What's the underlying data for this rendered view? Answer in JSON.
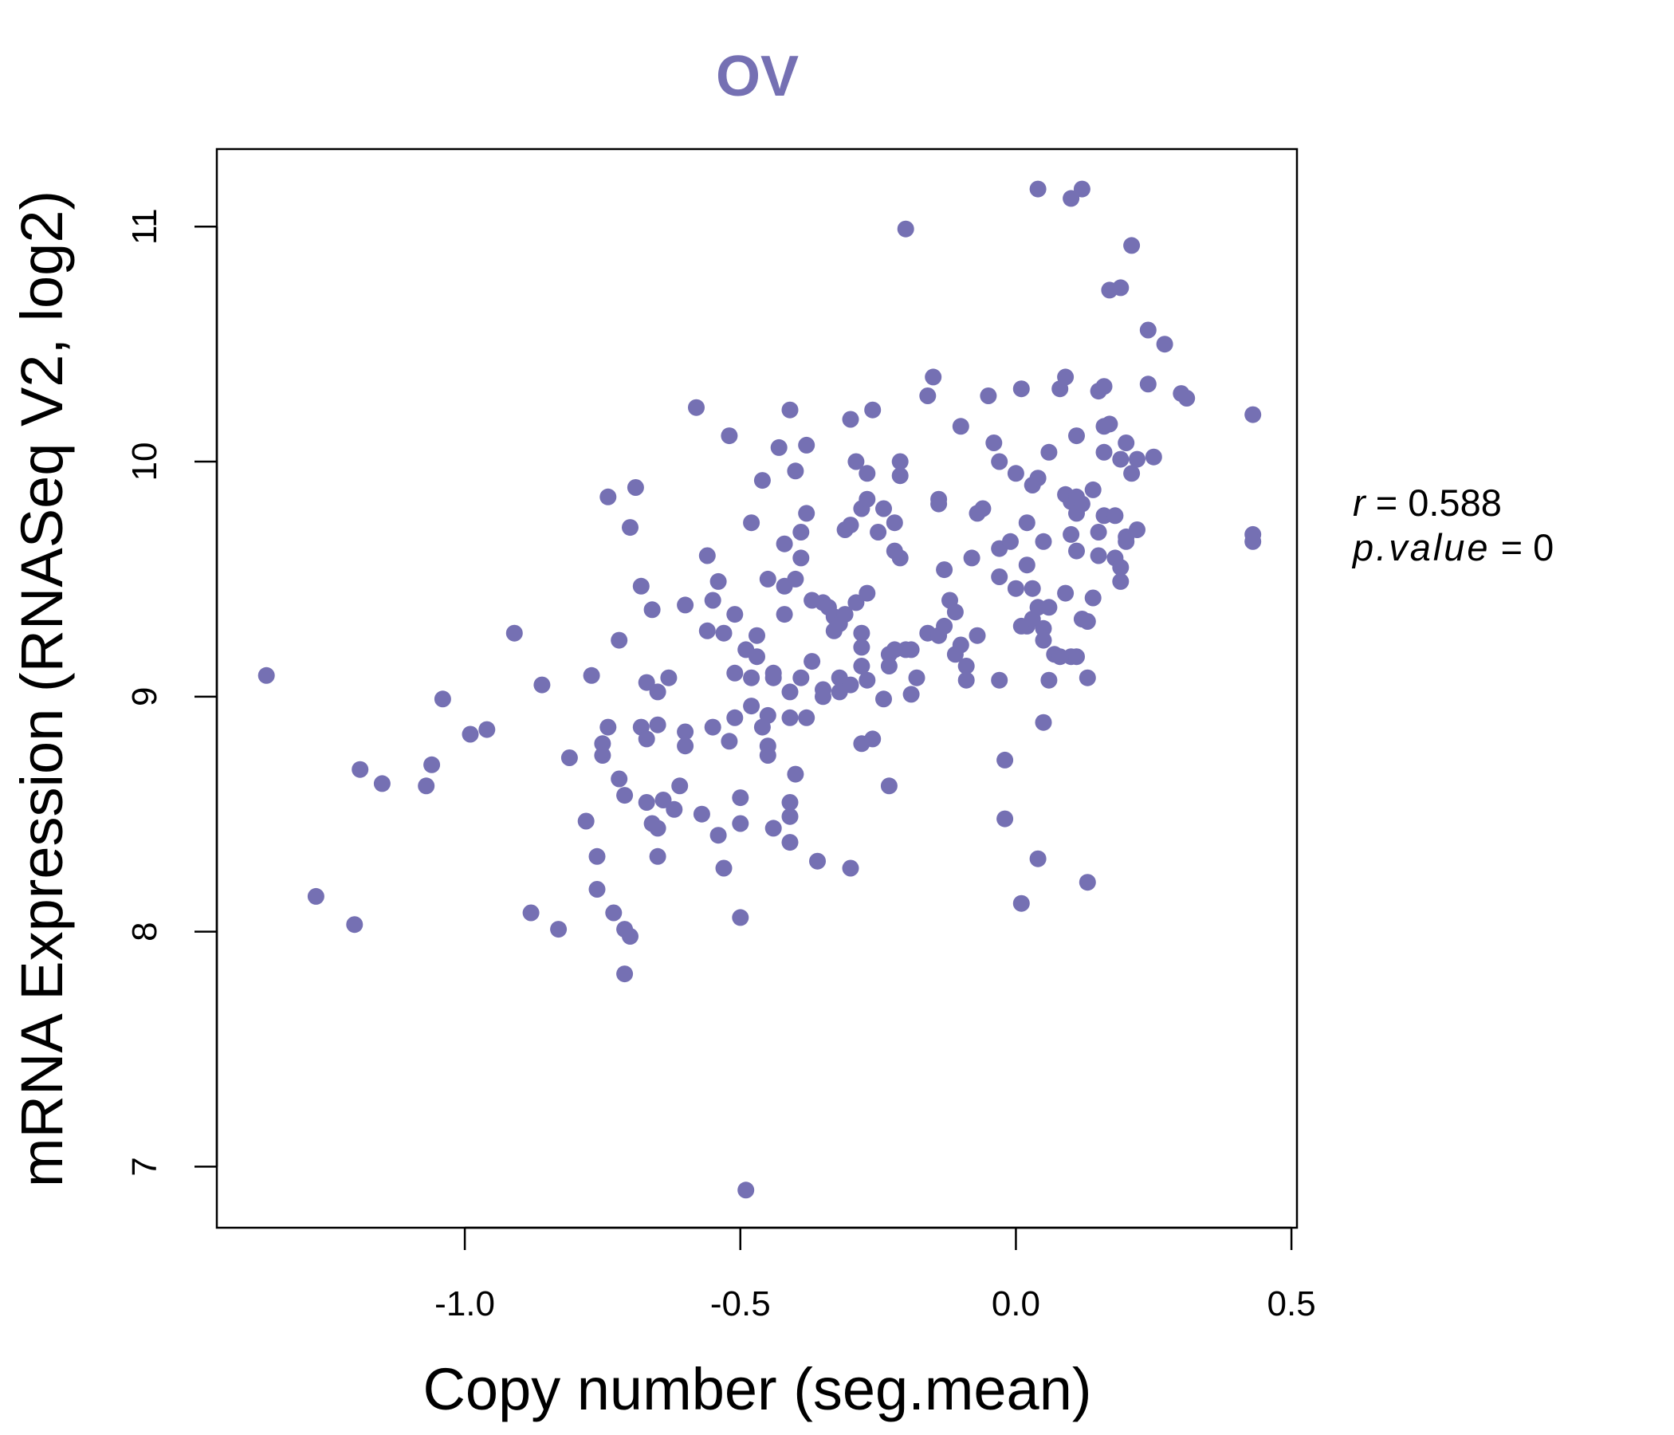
{
  "chart_data": {
    "type": "scatter",
    "title": "OV",
    "xlabel": "Copy number (seg.mean)",
    "ylabel": "mRNA Expression (RNASeq V2, log2)",
    "xlim": [
      -1.45,
      0.51
    ],
    "ylim": [
      6.74,
      11.33
    ],
    "xticks": [
      -1.0,
      -0.5,
      0.0,
      0.5
    ],
    "xtick_labels": [
      "-1.0",
      "-0.5",
      "0.0",
      "0.5"
    ],
    "yticks": [
      7,
      8,
      9,
      10,
      11
    ],
    "ytick_labels": [
      "7",
      "8",
      "9",
      "10",
      "11"
    ],
    "point_color": "#7570B3",
    "title_color": "#7570B3",
    "stats": {
      "r_label": "r",
      "r_value": "0.588",
      "p_label": "p.value",
      "p_value": "0"
    },
    "points": [
      [
        -1.36,
        9.09
      ],
      [
        -1.27,
        8.15
      ],
      [
        -1.2,
        8.03
      ],
      [
        -1.19,
        8.69
      ],
      [
        -1.15,
        8.63
      ],
      [
        -1.07,
        8.62
      ],
      [
        -1.06,
        8.71
      ],
      [
        -1.04,
        8.99
      ],
      [
        -0.99,
        8.84
      ],
      [
        -0.96,
        8.86
      ],
      [
        -0.91,
        9.27
      ],
      [
        -0.88,
        8.08
      ],
      [
        -0.86,
        9.05
      ],
      [
        -0.83,
        8.01
      ],
      [
        -0.81,
        8.74
      ],
      [
        -0.78,
        8.47
      ],
      [
        -0.77,
        9.09
      ],
      [
        -0.76,
        8.32
      ],
      [
        -0.76,
        8.18
      ],
      [
        -0.75,
        8.8
      ],
      [
        -0.75,
        8.75
      ],
      [
        -0.74,
        8.87
      ],
      [
        -0.74,
        9.85
      ],
      [
        -0.73,
        8.08
      ],
      [
        -0.72,
        8.65
      ],
      [
        -0.72,
        9.24
      ],
      [
        -0.71,
        8.58
      ],
      [
        -0.71,
        7.82
      ],
      [
        -0.71,
        8.01
      ],
      [
        -0.7,
        9.72
      ],
      [
        -0.7,
        7.98
      ],
      [
        -0.69,
        9.89
      ],
      [
        -0.68,
        8.87
      ],
      [
        -0.68,
        9.47
      ],
      [
        -0.67,
        9.06
      ],
      [
        -0.67,
        8.82
      ],
      [
        -0.67,
        8.55
      ],
      [
        -0.66,
        9.37
      ],
      [
        -0.66,
        8.46
      ],
      [
        -0.65,
        8.44
      ],
      [
        -0.65,
        8.32
      ],
      [
        -0.65,
        8.88
      ],
      [
        -0.65,
        9.02
      ],
      [
        -0.64,
        8.56
      ],
      [
        -0.63,
        9.08
      ],
      [
        -0.62,
        8.52
      ],
      [
        -0.61,
        8.62
      ],
      [
        -0.6,
        8.79
      ],
      [
        -0.6,
        9.39
      ],
      [
        -0.6,
        8.85
      ],
      [
        -0.58,
        10.23
      ],
      [
        -0.57,
        8.5
      ],
      [
        -0.56,
        9.28
      ],
      [
        -0.56,
        9.6
      ],
      [
        -0.55,
        9.41
      ],
      [
        -0.55,
        8.87
      ],
      [
        -0.54,
        8.41
      ],
      [
        -0.54,
        9.49
      ],
      [
        -0.53,
        9.27
      ],
      [
        -0.53,
        8.27
      ],
      [
        -0.52,
        10.11
      ],
      [
        -0.52,
        8.81
      ],
      [
        -0.51,
        8.91
      ],
      [
        -0.51,
        9.1
      ],
      [
        -0.51,
        9.35
      ],
      [
        -0.5,
        8.46
      ],
      [
        -0.5,
        8.57
      ],
      [
        -0.5,
        8.06
      ],
      [
        -0.49,
        9.2
      ],
      [
        -0.49,
        6.9
      ],
      [
        -0.48,
        8.96
      ],
      [
        -0.48,
        9.08
      ],
      [
        -0.48,
        9.74
      ],
      [
        -0.47,
        9.26
      ],
      [
        -0.47,
        9.17
      ],
      [
        -0.46,
        9.92
      ],
      [
        -0.46,
        8.87
      ],
      [
        -0.45,
        8.79
      ],
      [
        -0.45,
        9.5
      ],
      [
        -0.45,
        8.92
      ],
      [
        -0.45,
        8.75
      ],
      [
        -0.44,
        9.1
      ],
      [
        -0.44,
        9.08
      ],
      [
        -0.44,
        8.44
      ],
      [
        -0.43,
        10.06
      ],
      [
        -0.42,
        9.65
      ],
      [
        -0.42,
        9.35
      ],
      [
        -0.42,
        9.47
      ],
      [
        -0.41,
        8.38
      ],
      [
        -0.41,
        8.55
      ],
      [
        -0.41,
        8.49
      ],
      [
        -0.41,
        9.02
      ],
      [
        -0.41,
        8.91
      ],
      [
        -0.41,
        10.22
      ],
      [
        -0.4,
        8.67
      ],
      [
        -0.4,
        9.96
      ],
      [
        -0.4,
        9.5
      ],
      [
        -0.39,
        9.59
      ],
      [
        -0.39,
        9.08
      ],
      [
        -0.39,
        9.7
      ],
      [
        -0.38,
        8.91
      ],
      [
        -0.38,
        10.07
      ],
      [
        -0.38,
        9.78
      ],
      [
        -0.37,
        9.41
      ],
      [
        -0.37,
        9.15
      ],
      [
        -0.36,
        8.3
      ],
      [
        -0.35,
        9.4
      ],
      [
        -0.35,
        9.03
      ],
      [
        -0.35,
        9.0
      ],
      [
        -0.34,
        9.38
      ],
      [
        -0.33,
        9.28
      ],
      [
        -0.33,
        9.34
      ],
      [
        -0.32,
        9.31
      ],
      [
        -0.32,
        9.02
      ],
      [
        -0.32,
        9.08
      ],
      [
        -0.31,
        9.35
      ],
      [
        -0.31,
        9.71
      ],
      [
        -0.3,
        9.73
      ],
      [
        -0.3,
        10.18
      ],
      [
        -0.3,
        8.27
      ],
      [
        -0.3,
        9.05
      ],
      [
        -0.29,
        9.4
      ],
      [
        -0.29,
        10.0
      ],
      [
        -0.28,
        9.21
      ],
      [
        -0.28,
        9.8
      ],
      [
        -0.28,
        9.27
      ],
      [
        -0.28,
        8.8
      ],
      [
        -0.28,
        9.13
      ],
      [
        -0.27,
        9.07
      ],
      [
        -0.27,
        9.44
      ],
      [
        -0.27,
        9.95
      ],
      [
        -0.27,
        9.84
      ],
      [
        -0.26,
        10.22
      ],
      [
        -0.26,
        8.82
      ],
      [
        -0.25,
        9.7
      ],
      [
        -0.24,
        9.8
      ],
      [
        -0.24,
        8.99
      ],
      [
        -0.23,
        9.18
      ],
      [
        -0.23,
        9.13
      ],
      [
        -0.23,
        8.62
      ],
      [
        -0.22,
        9.62
      ],
      [
        -0.22,
        9.74
      ],
      [
        -0.22,
        9.2
      ],
      [
        -0.21,
        9.59
      ],
      [
        -0.21,
        9.94
      ],
      [
        -0.21,
        10.0
      ],
      [
        -0.2,
        9.2
      ],
      [
        -0.2,
        10.99
      ],
      [
        -0.19,
        9.2
      ],
      [
        -0.19,
        9.01
      ],
      [
        -0.18,
        9.08
      ],
      [
        -0.16,
        10.28
      ],
      [
        -0.16,
        9.27
      ],
      [
        -0.15,
        10.36
      ],
      [
        -0.14,
        9.82
      ],
      [
        -0.14,
        9.84
      ],
      [
        -0.14,
        9.26
      ],
      [
        -0.13,
        9.54
      ],
      [
        -0.13,
        9.3
      ],
      [
        -0.12,
        9.41
      ],
      [
        -0.11,
        9.18
      ],
      [
        -0.11,
        9.36
      ],
      [
        -0.1,
        10.15
      ],
      [
        -0.1,
        9.22
      ],
      [
        -0.09,
        9.07
      ],
      [
        -0.09,
        9.13
      ],
      [
        -0.08,
        9.59
      ],
      [
        -0.07,
        9.78
      ],
      [
        -0.07,
        9.26
      ],
      [
        -0.06,
        9.8
      ],
      [
        -0.05,
        10.28
      ],
      [
        -0.04,
        10.08
      ],
      [
        -0.03,
        9.51
      ],
      [
        -0.03,
        10.0
      ],
      [
        -0.03,
        9.07
      ],
      [
        -0.03,
        9.63
      ],
      [
        -0.02,
        8.73
      ],
      [
        -0.02,
        8.48
      ],
      [
        -0.01,
        9.66
      ],
      [
        0.0,
        9.95
      ],
      [
        0.0,
        9.46
      ],
      [
        0.01,
        9.3
      ],
      [
        0.01,
        8.12
      ],
      [
        0.01,
        10.31
      ],
      [
        0.02,
        9.56
      ],
      [
        0.02,
        9.3
      ],
      [
        0.02,
        9.74
      ],
      [
        0.03,
        9.9
      ],
      [
        0.03,
        9.46
      ],
      [
        0.03,
        9.33
      ],
      [
        0.04,
        9.93
      ],
      [
        0.04,
        8.31
      ],
      [
        0.04,
        9.38
      ],
      [
        0.04,
        11.16
      ],
      [
        0.05,
        9.66
      ],
      [
        0.05,
        9.24
      ],
      [
        0.05,
        9.29
      ],
      [
        0.05,
        8.89
      ],
      [
        0.06,
        10.04
      ],
      [
        0.06,
        9.07
      ],
      [
        0.06,
        9.38
      ],
      [
        0.07,
        9.18
      ],
      [
        0.08,
        10.31
      ],
      [
        0.08,
        9.17
      ],
      [
        0.09,
        9.44
      ],
      [
        0.09,
        10.36
      ],
      [
        0.09,
        9.86
      ],
      [
        0.1,
        9.17
      ],
      [
        0.1,
        11.12
      ],
      [
        0.1,
        9.83
      ],
      [
        0.1,
        9.69
      ],
      [
        0.11,
        9.85
      ],
      [
        0.11,
        9.78
      ],
      [
        0.11,
        10.11
      ],
      [
        0.11,
        9.62
      ],
      [
        0.11,
        9.17
      ],
      [
        0.12,
        9.33
      ],
      [
        0.12,
        11.16
      ],
      [
        0.12,
        9.82
      ],
      [
        0.13,
        8.21
      ],
      [
        0.13,
        9.32
      ],
      [
        0.13,
        9.08
      ],
      [
        0.14,
        9.42
      ],
      [
        0.14,
        9.88
      ],
      [
        0.15,
        10.3
      ],
      [
        0.15,
        9.6
      ],
      [
        0.15,
        9.7
      ],
      [
        0.16,
        10.32
      ],
      [
        0.16,
        9.77
      ],
      [
        0.16,
        10.15
      ],
      [
        0.16,
        10.04
      ],
      [
        0.17,
        10.73
      ],
      [
        0.17,
        10.16
      ],
      [
        0.18,
        9.59
      ],
      [
        0.18,
        9.77
      ],
      [
        0.19,
        9.49
      ],
      [
        0.19,
        10.74
      ],
      [
        0.19,
        9.55
      ],
      [
        0.19,
        10.01
      ],
      [
        0.2,
        10.08
      ],
      [
        0.2,
        9.68
      ],
      [
        0.2,
        9.66
      ],
      [
        0.21,
        10.92
      ],
      [
        0.21,
        9.95
      ],
      [
        0.22,
        9.71
      ],
      [
        0.22,
        10.01
      ],
      [
        0.24,
        10.33
      ],
      [
        0.24,
        10.56
      ],
      [
        0.25,
        10.02
      ],
      [
        0.27,
        10.5
      ],
      [
        0.3,
        10.29
      ],
      [
        0.31,
        10.27
      ],
      [
        0.43,
        10.2
      ],
      [
        0.43,
        9.69
      ],
      [
        0.43,
        9.66
      ]
    ]
  }
}
